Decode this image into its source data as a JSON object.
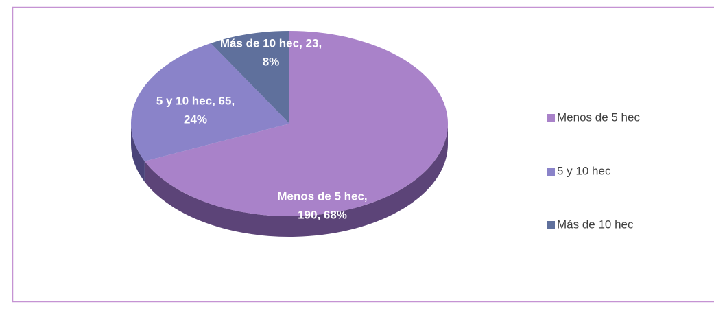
{
  "chart_data": {
    "type": "pie",
    "categories": [
      "Menos de 5 hec",
      "5 y 10 hec",
      "Más de 10 hec"
    ],
    "values": [
      190,
      65,
      23
    ],
    "value_labels": [
      [
        "Menos de 5 hec,",
        "190, 68%"
      ],
      [
        "5 y 10 hec, 65,",
        "24%"
      ],
      [
        "Más de 10 hec, 23,",
        "8%"
      ]
    ],
    "colors": [
      "#a982c9",
      "#8a83c9",
      "#5f709c"
    ],
    "side_colors": [
      "#5c4478",
      "#4a4479",
      "#33405e"
    ],
    "legend": "right"
  }
}
